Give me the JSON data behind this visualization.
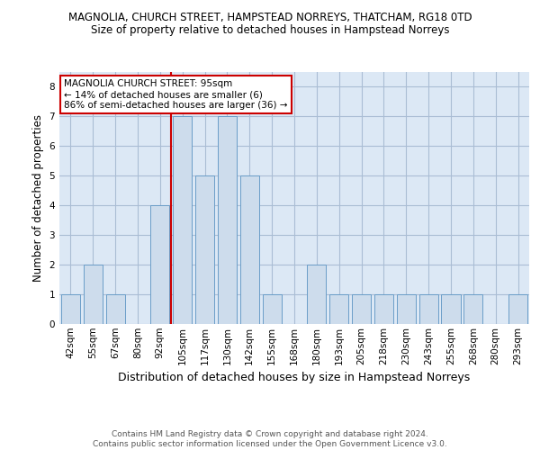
{
  "title": "MAGNOLIA, CHURCH STREET, HAMPSTEAD NORREYS, THATCHAM, RG18 0TD",
  "subtitle": "Size of property relative to detached houses in Hampstead Norreys",
  "xlabel": "Distribution of detached houses by size in Hampstead Norreys",
  "ylabel": "Number of detached properties",
  "footer_line1": "Contains HM Land Registry data © Crown copyright and database right 2024.",
  "footer_line2": "Contains public sector information licensed under the Open Government Licence v3.0.",
  "categories": [
    "42sqm",
    "55sqm",
    "67sqm",
    "80sqm",
    "92sqm",
    "105sqm",
    "117sqm",
    "130sqm",
    "142sqm",
    "155sqm",
    "168sqm",
    "180sqm",
    "193sqm",
    "205sqm",
    "218sqm",
    "230sqm",
    "243sqm",
    "255sqm",
    "268sqm",
    "280sqm",
    "293sqm"
  ],
  "values": [
    1,
    2,
    1,
    0,
    4,
    7,
    5,
    7,
    5,
    1,
    0,
    2,
    1,
    1,
    1,
    1,
    1,
    1,
    1,
    0,
    1
  ],
  "bar_color": "#cddcec",
  "bar_edge_color": "#6a9dc8",
  "red_line_index": 4,
  "annotation_text": "MAGNOLIA CHURCH STREET: 95sqm\n← 14% of detached houses are smaller (6)\n86% of semi-detached houses are larger (36) →",
  "annotation_box_color": "#ffffff",
  "annotation_box_edge_color": "#cc0000",
  "red_line_color": "#cc0000",
  "ylim": [
    0,
    8.5
  ],
  "yticks": [
    0,
    1,
    2,
    3,
    4,
    5,
    6,
    7,
    8
  ],
  "grid_color": "#aabdd4",
  "background_color": "#dce8f5",
  "title_fontsize": 8.5,
  "subtitle_fontsize": 8.5,
  "ylabel_fontsize": 8.5,
  "xlabel_fontsize": 9,
  "tick_fontsize": 7.5,
  "footer_fontsize": 6.5,
  "annotation_fontsize": 7.5
}
